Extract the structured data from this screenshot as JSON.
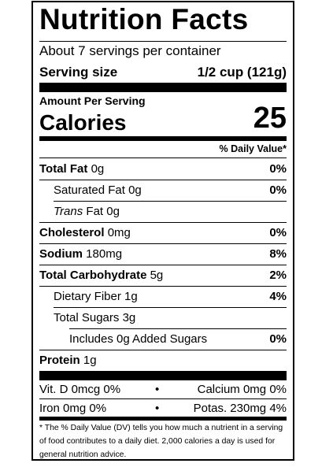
{
  "label": {
    "title": "Nutrition Facts",
    "servings_per_container": "About 7 servings per container",
    "serving_size_label": "Serving size",
    "serving_size_value": "1/2 cup (121g)",
    "amount_per_serving": "Amount Per Serving",
    "calories_label": "Calories",
    "calories_value": "25",
    "daily_value_header": "% Daily Value*",
    "nutrients": {
      "total_fat": {
        "label": "Total Fat",
        "amount": "0g",
        "dv": "0%"
      },
      "saturated_fat": {
        "label": "Saturated Fat",
        "amount": "0g",
        "dv": "0%"
      },
      "trans_fat": {
        "label_italic": "Trans",
        "label_rest": " Fat",
        "amount": "0g"
      },
      "cholesterol": {
        "label": "Cholesterol",
        "amount": "0mg",
        "dv": "0%"
      },
      "sodium": {
        "label": "Sodium",
        "amount": "180mg",
        "dv": "8%"
      },
      "total_carbohydrate": {
        "label": "Total Carbohydrate",
        "amount": "5g",
        "dv": "2%"
      },
      "dietary_fiber": {
        "label": "Dietary Fiber",
        "amount": "1g",
        "dv": "4%"
      },
      "total_sugars": {
        "label": "Total Sugars",
        "amount": "3g"
      },
      "added_sugars": {
        "label": "Includes 0g Added Sugars",
        "dv": "0%"
      },
      "protein": {
        "label": "Protein",
        "amount": "1g"
      }
    },
    "micronutrients": {
      "vit_d": "Vit. D 0mcg 0%",
      "calcium": "Calcium 0mg 0%",
      "iron": "Iron 0mg 0%",
      "potassium": "Potas. 230mg 4%",
      "bullet": "•"
    },
    "footnote": "* The % Daily Value (DV) tells you how much a nutrient in a serving of food contributes to a daily diet. 2,000 calories a day is used for general nutrition advice."
  }
}
